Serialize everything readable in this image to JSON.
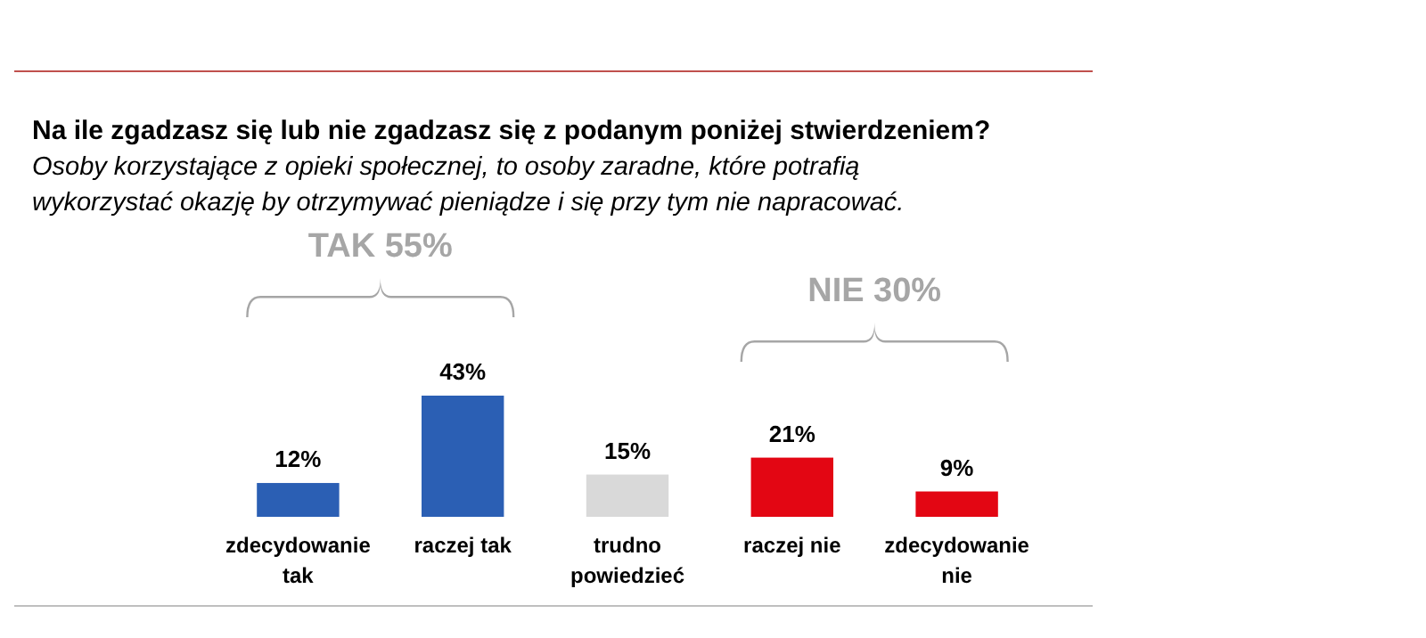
{
  "chart_data": {
    "type": "bar",
    "title": "Na ile zgadzasz się lub nie zgadzasz się z podanym poniżej stwierdzeniem?",
    "subtitle": "Osoby korzystające z opieki społecznej, to osoby zaradne, które potrafią wykorzystać okazję by otrzymywać pieniądze i się przy tym nie napracować.",
    "categories": [
      "zdecydowanie tak",
      "raczej tak",
      "trudno powiedzieć",
      "raczej nie",
      "zdecydowanie nie"
    ],
    "values": [
      12,
      43,
      15,
      21,
      9
    ],
    "colors": [
      "#2b5fb4",
      "#2b5fb4",
      "#d9d9d9",
      "#e30613",
      "#e30613"
    ],
    "value_labels": [
      "12%",
      "43%",
      "15%",
      "21%",
      "9%"
    ],
    "annotations": [
      "TAK 55%",
      "NIE 30%"
    ]
  }
}
